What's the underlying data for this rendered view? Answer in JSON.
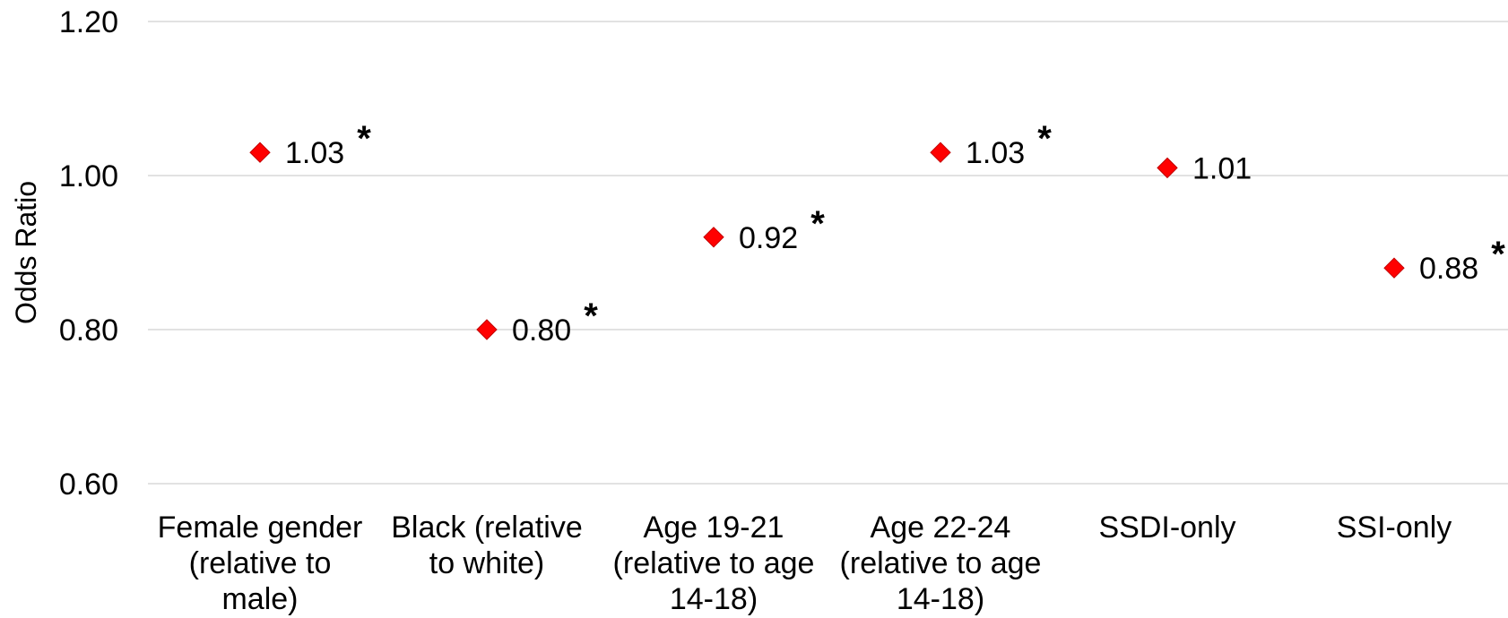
{
  "chart_data": {
    "type": "scatter",
    "title": "",
    "xlabel": "",
    "ylabel": "Odds Ratio",
    "ylim": [
      0.6,
      1.2
    ],
    "yticks": [
      "0.60",
      "0.80",
      "1.00",
      "1.20"
    ],
    "grid": true,
    "legend": "none",
    "marker": "diamond",
    "marker_color": "#ff0000",
    "categories": [
      [
        "Female gender",
        "(relative to",
        "male)"
      ],
      [
        "Black (relative",
        "to white)"
      ],
      [
        "Age 19-21",
        "(relative to age",
        "14-18)"
      ],
      [
        "Age 22-24",
        "(relative to age",
        "14-18)"
      ],
      [
        "SSDI-only"
      ],
      [
        "SSI-only"
      ]
    ],
    "values": [
      1.03,
      0.8,
      0.92,
      1.03,
      1.01,
      0.88
    ],
    "data_labels": [
      "1.03",
      "0.80",
      "0.92",
      "1.03",
      "1.01",
      "0.88"
    ],
    "significance": [
      "*",
      "*",
      "*",
      "*",
      "",
      "*"
    ]
  }
}
